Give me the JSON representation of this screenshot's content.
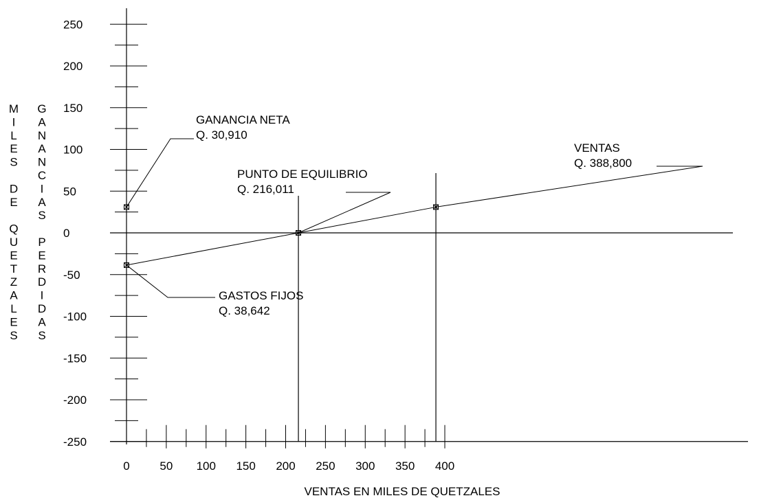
{
  "chart_data": {
    "type": "line",
    "title": "",
    "xlabel": "VENTAS EN MILES DE QUETZALES",
    "ylabel_outer": "MILES DE QUETZALES",
    "ylabel_inner": "GANANCIAS PERDIDAS",
    "xlim": [
      0,
      400
    ],
    "ylim": [
      -250,
      250
    ],
    "x_ticks": [
      0,
      50,
      100,
      150,
      200,
      250,
      300,
      350,
      400
    ],
    "x_tick_labels": [
      "0",
      "50",
      "100",
      "150",
      "200",
      "250",
      "300",
      "350",
      "400"
    ],
    "y_ticks": [
      250,
      200,
      150,
      100,
      50,
      0,
      -50,
      -100,
      -150,
      -200,
      -250
    ],
    "y_tick_labels": [
      "250",
      "200",
      "150",
      "100",
      "50",
      "0",
      "-50",
      "-100",
      "-150",
      "-200",
      "-250"
    ],
    "series": [
      {
        "x": [
          0,
          216.011,
          388.8
        ],
        "y": [
          -38.642,
          0,
          30.91
        ]
      }
    ],
    "break_even": {
      "x": 216.011,
      "y": 0
    },
    "annotations": [
      {
        "id": "ganancia",
        "title": "GANANCIA  NETA",
        "value": "Q. 30,910",
        "point": [
          0,
          30.91
        ]
      },
      {
        "id": "equilibrio",
        "title": "PUNTO DE EQUILIBRIO",
        "value": "Q. 216,011",
        "point": [
          216.011,
          0
        ]
      },
      {
        "id": "ventas",
        "title": "VENTAS",
        "value": "Q. 388,800",
        "point": [
          388.8,
          30.91
        ]
      },
      {
        "id": "gastos",
        "title": "GASTOS  FIJOS",
        "value": "Q. 38,642",
        "point": [
          0,
          -38.642
        ]
      }
    ],
    "grid": false,
    "legend": "none"
  }
}
